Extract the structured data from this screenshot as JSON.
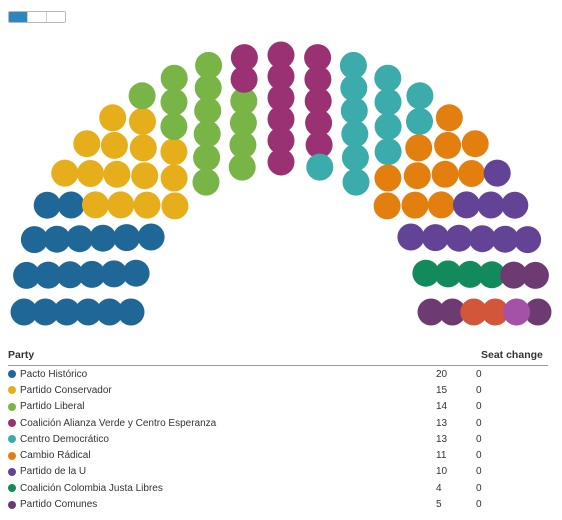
{
  "view_toggle": [
    {
      "label": "",
      "active": true
    },
    {
      "label": "",
      "active": false
    },
    {
      "label": "",
      "active": false
    }
  ],
  "table": {
    "party_header": "Party",
    "seat_change_header": "Seat change"
  },
  "chart_data": {
    "type": "parliament",
    "total_seats": 108,
    "parties": [
      {
        "name": "Pacto Histórico",
        "seats": 20,
        "change": "0",
        "color": "#1f6797"
      },
      {
        "name": "Partido Conservador",
        "seats": 15,
        "change": "0",
        "color": "#e6ae1b"
      },
      {
        "name": "Partido Liberal",
        "seats": 14,
        "change": "0",
        "color": "#78b446"
      },
      {
        "name": "Coalición Alianza Verde y Centro Esperanza",
        "seats": 13,
        "change": "0",
        "color": "#9a3173"
      },
      {
        "name": "Centro Democrático",
        "seats": 13,
        "change": "0",
        "color": "#3bacab"
      },
      {
        "name": "Cambio Rádical",
        "seats": 11,
        "change": "0",
        "color": "#e37f0e"
      },
      {
        "name": "Partido de la U",
        "seats": 10,
        "change": "0",
        "color": "#634396"
      },
      {
        "name": "Coalición Colombia Justa Libres",
        "seats": 4,
        "change": "0",
        "color": "#138a5b"
      },
      {
        "name": "Partido Comunes",
        "seats": 5,
        "change": "0",
        "color": "#6d3a72"
      },
      {
        "name": "",
        "seats": 2,
        "change": "",
        "color": "#d2563a"
      },
      {
        "name": "",
        "seats": 1,
        "change": "",
        "color": "#a352a7"
      }
    ]
  }
}
